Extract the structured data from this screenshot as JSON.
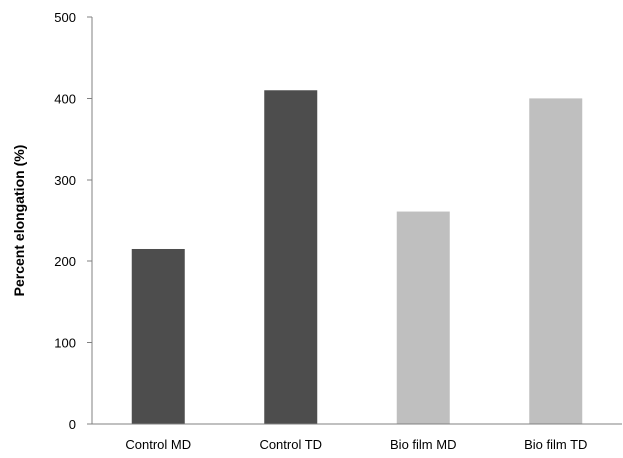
{
  "chart_data": {
    "type": "bar",
    "title": "",
    "xlabel": "",
    "ylabel": "Percent elongation (%)",
    "categories": [
      "Control MD",
      "Control TD",
      "Bio film MD",
      "Bio film TD"
    ],
    "values": [
      215,
      410,
      261,
      400
    ],
    "bar_colors": [
      "#4d4d4d",
      "#4d4d4d",
      "#bfbfbf",
      "#bfbfbf"
    ],
    "ylim": [
      0,
      500
    ],
    "yticks": [
      0,
      100,
      200,
      300,
      400,
      500
    ],
    "grid": false,
    "legend": "none"
  }
}
